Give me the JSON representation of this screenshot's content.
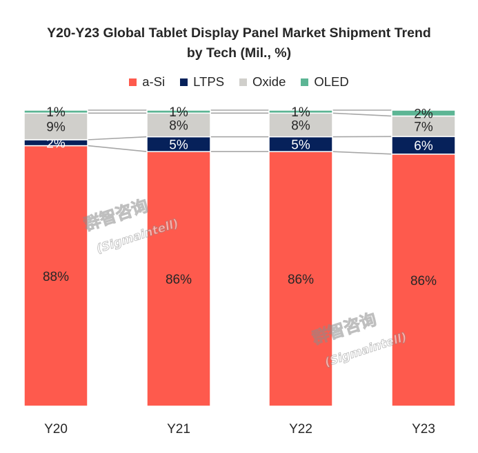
{
  "chart_data": {
    "type": "bar",
    "stacked": true,
    "percent": true,
    "title": "Y20-Y23 Global Tablet Display Panel Market Shipment Trend",
    "subtitle": "by Tech (Mil., %)",
    "categories": [
      "Y20",
      "Y21",
      "Y22",
      "Y23"
    ],
    "series": [
      {
        "name": "a-Si",
        "color": "#fe5a4d",
        "values": [
          88,
          86,
          86,
          86
        ]
      },
      {
        "name": "LTPS",
        "color": "#06215a",
        "values": [
          2,
          5,
          5,
          6
        ]
      },
      {
        "name": "Oxide",
        "color": "#d0cfcb",
        "values": [
          9,
          8,
          8,
          7
        ]
      },
      {
        "name": "OLED",
        "color": "#5cb594",
        "values": [
          1,
          1,
          1,
          2
        ]
      }
    ],
    "value_suffix": "%",
    "legend_position": "top",
    "grid": false
  },
  "watermark": {
    "text_cn": "群智咨询",
    "text_en": "(Sigmaintell)"
  }
}
